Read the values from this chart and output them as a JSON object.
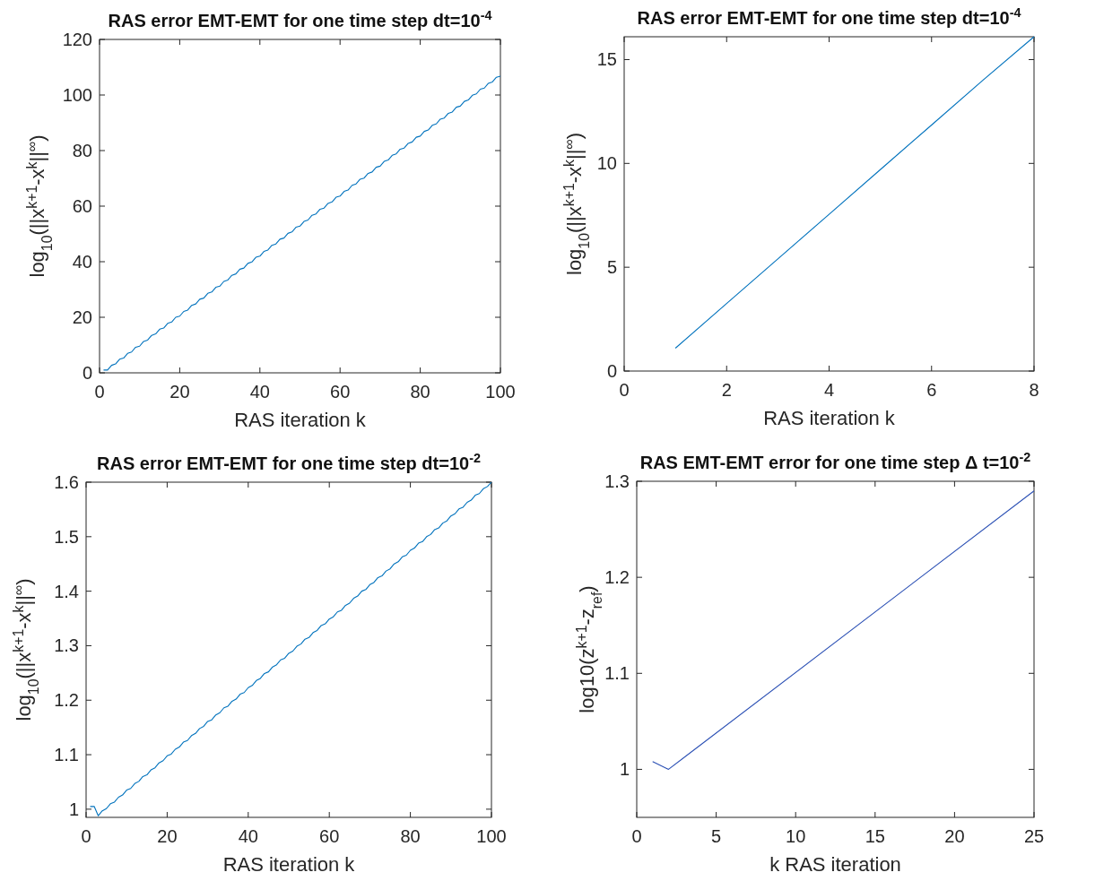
{
  "chart_data": [
    {
      "type": "line",
      "title": "RAS error EMT-EMT for one time step dt=10$^{-4}$",
      "xlabel": "RAS iteration k",
      "ylabel": "log$_{10}$(||x$^{k+1}$-x$^{k}$||$^{∞}$)",
      "xlim": [
        0,
        100
      ],
      "ylim": [
        0,
        120
      ],
      "xticks": [
        0,
        20,
        40,
        60,
        80,
        100
      ],
      "yticks": [
        0,
        20,
        40,
        60,
        80,
        100,
        120
      ],
      "x": [
        1,
        2,
        3,
        4,
        5,
        6,
        7,
        8,
        9,
        10,
        11,
        12,
        13,
        14,
        15,
        16,
        17,
        18,
        19,
        20,
        21,
        22,
        23,
        24,
        25,
        26,
        27,
        28,
        29,
        30,
        31,
        32,
        33,
        34,
        35,
        36,
        37,
        38,
        39,
        40,
        41,
        42,
        43,
        44,
        45,
        46,
        47,
        48,
        49,
        50,
        51,
        52,
        53,
        54,
        55,
        56,
        57,
        58,
        59,
        60,
        61,
        62,
        63,
        64,
        65,
        66,
        67,
        68,
        69,
        70,
        71,
        72,
        73,
        74,
        75,
        76,
        77,
        78,
        79,
        80,
        81,
        82,
        83,
        84,
        85,
        86,
        87,
        88,
        89,
        90,
        91,
        92,
        93,
        94,
        95,
        96,
        97,
        98,
        99,
        100
      ],
      "series": [
        {
          "color": "#0072bd",
          "values": [
            1.0,
            1.0,
            2.7,
            3.2,
            4.9,
            5.3,
            7.0,
            7.5,
            9.2,
            9.6,
            11.3,
            11.8,
            13.5,
            14.0,
            15.7,
            16.1,
            17.8,
            18.3,
            20.0,
            20.4,
            22.1,
            22.6,
            24.3,
            24.8,
            26.5,
            26.9,
            28.6,
            29.1,
            30.8,
            31.2,
            32.9,
            33.4,
            35.1,
            35.6,
            37.3,
            37.7,
            39.4,
            39.9,
            41.6,
            42.0,
            43.7,
            44.2,
            45.9,
            46.4,
            48.1,
            48.5,
            50.2,
            50.7,
            52.4,
            52.8,
            54.5,
            55.0,
            56.7,
            57.2,
            58.9,
            59.3,
            61.0,
            61.5,
            63.2,
            63.6,
            65.3,
            65.8,
            67.5,
            68.0,
            69.7,
            70.1,
            71.8,
            72.3,
            74.0,
            74.4,
            76.1,
            76.6,
            78.3,
            78.8,
            80.5,
            80.9,
            82.6,
            83.1,
            84.8,
            85.2,
            86.9,
            87.4,
            89.1,
            89.6,
            91.3,
            91.7,
            93.4,
            93.9,
            95.6,
            96.0,
            97.7,
            98.2,
            99.9,
            100.4,
            102.1,
            102.5,
            104.2,
            104.7,
            106.4,
            106.8
          ]
        }
      ]
    },
    {
      "type": "line",
      "title": "RAS error EMT-EMT for one time step dt=10$^{-4}$",
      "xlabel": "RAS iteration k",
      "ylabel": "log$_{10}$(||x$^{k+1}$-x$^{k}$||$^{∞}$)",
      "xlim": [
        0,
        8
      ],
      "ylim": [
        0,
        16.1
      ],
      "xticks": [
        0,
        2,
        4,
        6,
        8
      ],
      "yticks": [
        0,
        5,
        10,
        15
      ],
      "x": [
        1,
        2,
        3,
        4,
        5,
        6,
        7,
        8
      ],
      "series": [
        {
          "color": "#0072bd",
          "values": [
            1.1,
            3.25,
            5.4,
            7.55,
            9.7,
            11.85,
            14.0,
            16.1
          ]
        }
      ]
    },
    {
      "type": "line",
      "title": "RAS error EMT-EMT for one time step dt=10$^{-2}$",
      "xlabel": "RAS iteration k",
      "ylabel": "log$_{10}$(||x$^{k+1}$-x$^{k}$||$^{∞}$)",
      "xlim": [
        0,
        100
      ],
      "ylim": [
        0.985,
        1.6
      ],
      "xticks": [
        0,
        20,
        40,
        60,
        80,
        100
      ],
      "yticks": [
        1,
        1.1,
        1.2,
        1.3,
        1.4,
        1.5,
        1.6
      ],
      "x": [
        1,
        2,
        3,
        4,
        5,
        6,
        7,
        8,
        9,
        10,
        11,
        12,
        13,
        14,
        15,
        16,
        17,
        18,
        19,
        20,
        21,
        22,
        23,
        24,
        25,
        26,
        27,
        28,
        29,
        30,
        31,
        32,
        33,
        34,
        35,
        36,
        37,
        38,
        39,
        40,
        41,
        42,
        43,
        44,
        45,
        46,
        47,
        48,
        49,
        50,
        51,
        52,
        53,
        54,
        55,
        56,
        57,
        58,
        59,
        60,
        61,
        62,
        63,
        64,
        65,
        66,
        67,
        68,
        69,
        70,
        71,
        72,
        73,
        74,
        75,
        76,
        77,
        78,
        79,
        80,
        81,
        82,
        83,
        84,
        85,
        86,
        87,
        88,
        89,
        90,
        91,
        92,
        93,
        94,
        95,
        96,
        97,
        98,
        99,
        100
      ],
      "series": [
        {
          "color": "#0072bd",
          "values": [
            1.005,
            1.005,
            0.988,
            0.997,
            1.001,
            1.01,
            1.013,
            1.022,
            1.026,
            1.035,
            1.038,
            1.047,
            1.051,
            1.06,
            1.063,
            1.072,
            1.076,
            1.085,
            1.089,
            1.098,
            1.101,
            1.11,
            1.114,
            1.123,
            1.126,
            1.135,
            1.139,
            1.148,
            1.152,
            1.161,
            1.164,
            1.173,
            1.177,
            1.186,
            1.189,
            1.198,
            1.202,
            1.211,
            1.214,
            1.223,
            1.227,
            1.236,
            1.24,
            1.249,
            1.252,
            1.261,
            1.265,
            1.274,
            1.277,
            1.286,
            1.29,
            1.299,
            1.303,
            1.312,
            1.315,
            1.324,
            1.328,
            1.337,
            1.34,
            1.349,
            1.353,
            1.362,
            1.365,
            1.374,
            1.378,
            1.387,
            1.391,
            1.4,
            1.403,
            1.412,
            1.416,
            1.425,
            1.428,
            1.437,
            1.441,
            1.45,
            1.454,
            1.463,
            1.466,
            1.475,
            1.479,
            1.488,
            1.491,
            1.5,
            1.504,
            1.513,
            1.516,
            1.525,
            1.529,
            1.538,
            1.542,
            1.551,
            1.554,
            1.563,
            1.567,
            1.576,
            1.579,
            1.588,
            1.592,
            1.6
          ]
        }
      ]
    },
    {
      "type": "line",
      "title": "RAS EMT-EMT error for one time step Δ t=10$^{-2}$",
      "xlabel": "k RAS iteration",
      "ylabel": "log10(z$^{k+1}$-z$_{ref}$)",
      "xlim": [
        0,
        25
      ],
      "ylim": [
        0.95,
        1.3
      ],
      "xticks": [
        0,
        5,
        10,
        15,
        20,
        25
      ],
      "yticks": [
        1,
        1.1,
        1.2,
        1.3
      ],
      "x": [
        1,
        2,
        25
      ],
      "series": [
        {
          "color": "#2a4fb4",
          "values": [
            1.008,
            1.0,
            1.29
          ]
        }
      ]
    }
  ]
}
